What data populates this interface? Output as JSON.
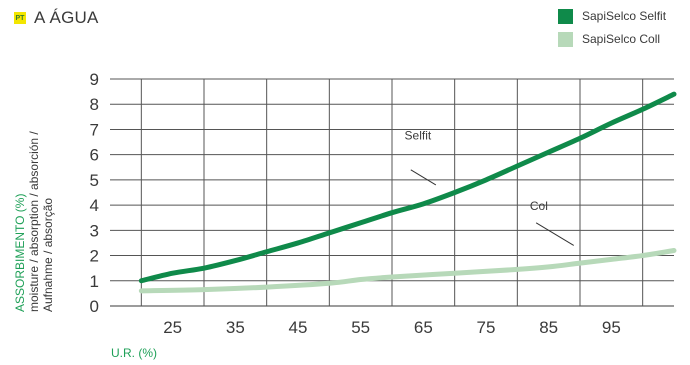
{
  "header": {
    "lang_code": "PT",
    "title": "A ÁGUA"
  },
  "legend": [
    {
      "label": "SapiSelco Selfit",
      "color": "#0f8a4a"
    },
    {
      "label": "SapiSelco Coll",
      "color": "#b7d9b9"
    }
  ],
  "ylabel_lines": [
    "ASSORBIMENTO (%)",
    "moisture / absorption / absorción /",
    "Aufnahme / absorção"
  ],
  "xlabel": "U.R. (%)",
  "chart_data": {
    "type": "line",
    "xlabel": "U.R. (%)",
    "ylabel": "ASSORBIMENTO (%)",
    "xlim": [
      15,
      105
    ],
    "ylim": [
      0,
      9
    ],
    "x_ticks": [
      25,
      35,
      45,
      55,
      65,
      75,
      85,
      95
    ],
    "y_ticks": [
      0,
      1,
      2,
      3,
      4,
      5,
      6,
      7,
      8,
      9
    ],
    "grid": true,
    "legend_position": "top-right",
    "series": [
      {
        "name": "SapiSelco Selfit",
        "color": "#0f8a4a",
        "x": [
          20,
          25,
          30,
          35,
          40,
          45,
          50,
          55,
          60,
          65,
          70,
          75,
          80,
          85,
          90,
          95,
          100,
          105
        ],
        "y": [
          1.0,
          1.3,
          1.5,
          1.8,
          2.15,
          2.5,
          2.9,
          3.3,
          3.7,
          4.05,
          4.5,
          5.0,
          5.55,
          6.1,
          6.65,
          7.25,
          7.8,
          8.4
        ]
      },
      {
        "name": "SapiSelco Coll",
        "color": "#b7d9b9",
        "x": [
          20,
          30,
          40,
          50,
          55,
          60,
          70,
          80,
          85,
          90,
          95,
          100,
          105
        ],
        "y": [
          0.6,
          0.65,
          0.75,
          0.9,
          1.05,
          1.15,
          1.3,
          1.45,
          1.55,
          1.7,
          1.85,
          2.0,
          2.2
        ]
      }
    ],
    "annotations": [
      {
        "text": "Selfit",
        "x": 62,
        "y": 6.6,
        "arrow_from": [
          63,
          5.4
        ],
        "arrow_to": [
          67,
          4.8
        ]
      },
      {
        "text": "Col",
        "x": 82,
        "y": 3.8,
        "arrow_from": [
          83,
          3.3
        ],
        "arrow_to": [
          89,
          2.4
        ]
      }
    ]
  }
}
